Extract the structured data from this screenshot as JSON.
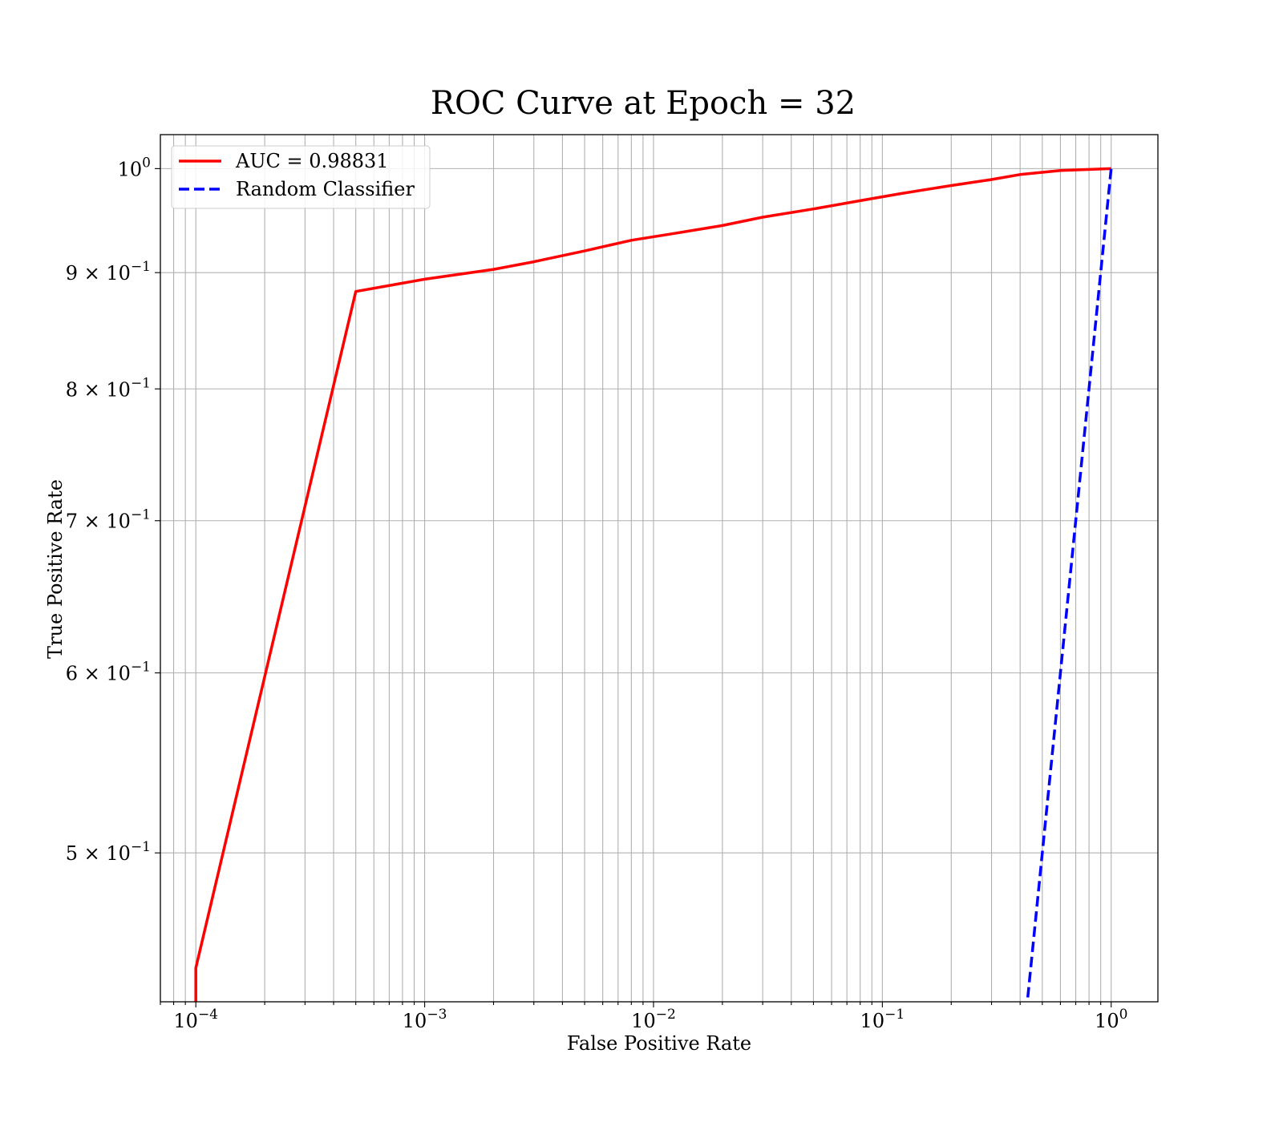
{
  "chart_data": {
    "type": "line",
    "title": "ROC Curve at Epoch = 32",
    "xlabel": "False Positive Rate",
    "ylabel": "True Positive Rate",
    "xscale": "log",
    "yscale": "log",
    "xlim": [
      7e-05,
      1.6
    ],
    "ylim": [
      0.43,
      1.035
    ],
    "grid": "on (major and minor)",
    "legend_position": "top-left",
    "x_ticks": [
      {
        "value": 0.0001,
        "base": "10",
        "exp": "−4"
      },
      {
        "value": 0.001,
        "base": "10",
        "exp": "−3"
      },
      {
        "value": 0.01,
        "base": "10",
        "exp": "−2"
      },
      {
        "value": 0.1,
        "base": "10",
        "exp": "−1"
      },
      {
        "value": 1,
        "base": "10",
        "exp": "0"
      }
    ],
    "y_ticks": [
      {
        "value": 0.5,
        "base": "5 × 10",
        "exp": "−1"
      },
      {
        "value": 0.6,
        "base": "6 × 10",
        "exp": "−1"
      },
      {
        "value": 0.7,
        "base": "7 × 10",
        "exp": "−1"
      },
      {
        "value": 0.8,
        "base": "8 × 10",
        "exp": "−1"
      },
      {
        "value": 0.9,
        "base": "9 × 10",
        "exp": "−1"
      },
      {
        "value": 1.0,
        "base": "10",
        "exp": "0"
      }
    ],
    "series": [
      {
        "name": "AUC = 0.98831",
        "color": "#ff0000",
        "style": "solid",
        "x": [
          0.0001,
          0.0001,
          0.0005,
          0.001,
          0.002,
          0.003,
          0.005,
          0.008,
          0.012,
          0.02,
          0.03,
          0.05,
          0.08,
          0.12,
          0.2,
          0.3,
          0.4,
          0.6,
          1.0
        ],
        "y": [
          0.4,
          0.445,
          0.883,
          0.894,
          0.903,
          0.91,
          0.92,
          0.93,
          0.936,
          0.944,
          0.952,
          0.96,
          0.968,
          0.975,
          0.983,
          0.989,
          0.994,
          0.998,
          1.0
        ]
      },
      {
        "name": "Random Classifier",
        "color": "#0000ff",
        "style": "dashed",
        "x": [
          0.4,
          1.0
        ],
        "y": [
          0.4,
          1.0
        ]
      }
    ]
  }
}
